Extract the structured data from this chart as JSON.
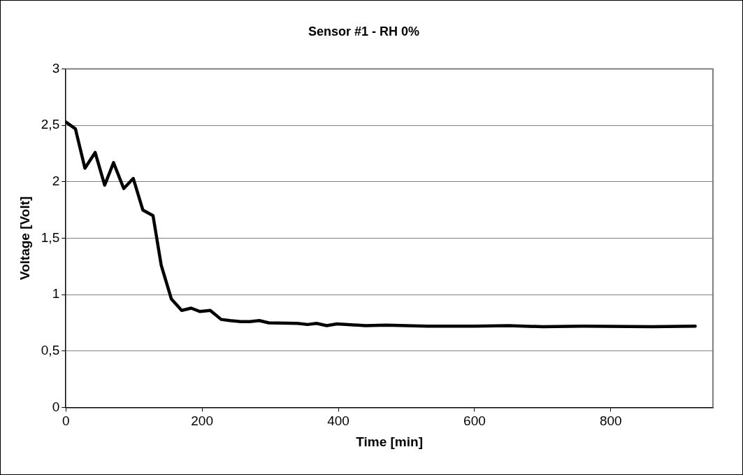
{
  "chart_data": {
    "type": "line",
    "title": "Sensor #1 - RH 0%",
    "xlabel": "Time [min]",
    "ylabel": "Voltage [Volt]",
    "x": [
      0,
      14,
      28,
      43,
      57,
      70,
      85,
      99,
      113,
      128,
      140,
      155,
      170,
      184,
      197,
      212,
      228,
      241,
      257,
      270,
      284,
      298,
      340,
      355,
      368,
      383,
      398,
      440,
      470,
      530,
      600,
      650,
      700,
      760,
      860,
      924
    ],
    "series": [
      {
        "color": "#000000",
        "values": [
          2.53,
          2.47,
          2.12,
          2.26,
          1.97,
          2.17,
          1.94,
          2.03,
          1.75,
          1.7,
          1.26,
          0.96,
          0.86,
          0.88,
          0.85,
          0.86,
          0.78,
          0.77,
          0.76,
          0.76,
          0.77,
          0.75,
          0.745,
          0.735,
          0.745,
          0.725,
          0.74,
          0.725,
          0.73,
          0.72,
          0.72,
          0.725,
          0.715,
          0.72,
          0.715,
          0.72
        ]
      }
    ],
    "xlim": [
      0,
      950
    ],
    "xticks": [
      0,
      200,
      400,
      600,
      800
    ],
    "ylim": [
      0,
      3
    ],
    "yticks": [
      0,
      {
        "value": 0.5,
        "label": "0,5"
      },
      1,
      {
        "value": 1.5,
        "label": "1,5"
      },
      2,
      {
        "value": 2.5,
        "label": "2,5"
      },
      3
    ],
    "grid": "y",
    "legend": false,
    "marker": "none",
    "line_style": "solid"
  }
}
